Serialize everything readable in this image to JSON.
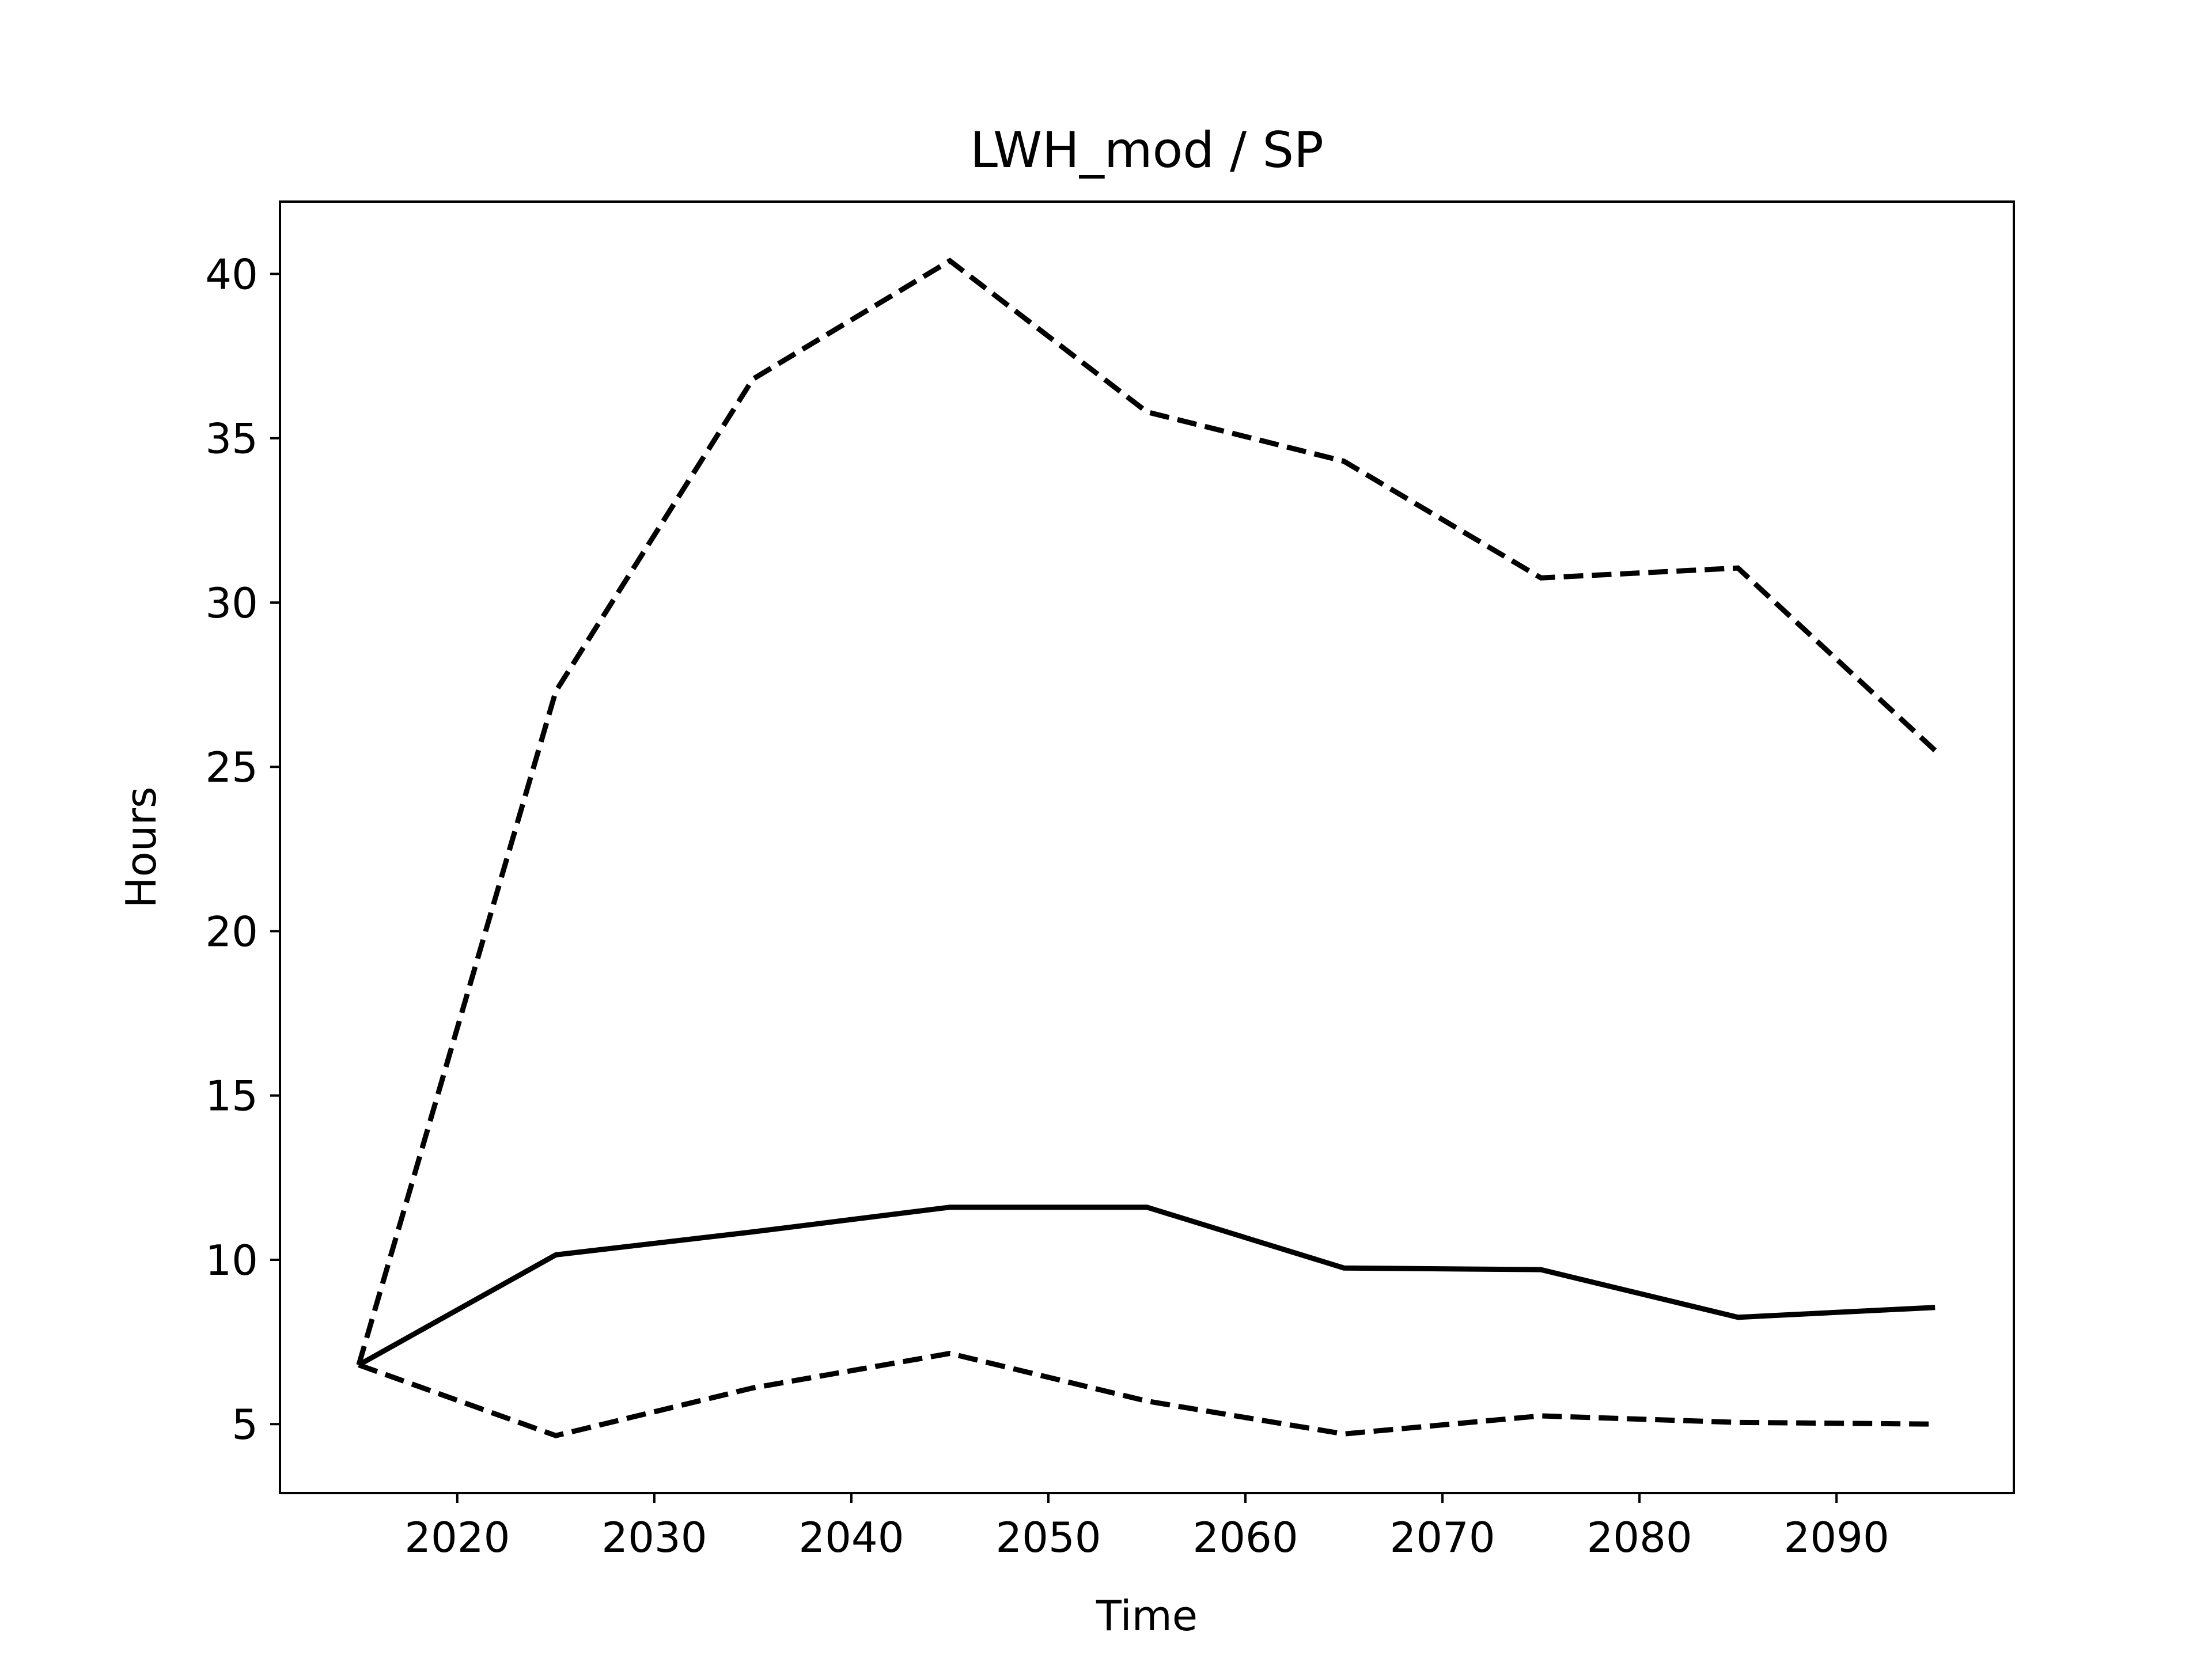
{
  "chart_data": {
    "type": "line",
    "title": "LWH_mod / SP",
    "xlabel": "Time",
    "ylabel": "Hours",
    "xlim": [
      2011,
      2099
    ],
    "ylim": [
      2.9,
      42.2
    ],
    "xticks": [
      2020,
      2030,
      2040,
      2050,
      2060,
      2070,
      2080,
      2090
    ],
    "yticks": [
      5,
      10,
      15,
      20,
      25,
      30,
      35,
      40
    ],
    "grid": false,
    "legend": "none",
    "x": [
      2015,
      2025,
      2035,
      2045,
      2055,
      2065,
      2075,
      2085,
      2095
    ],
    "series": [
      {
        "style": "solid",
        "color": "#000000",
        "values": [
          6.8,
          10.15,
          10.85,
          11.6,
          11.6,
          9.75,
          9.7,
          8.25,
          8.55
        ]
      },
      {
        "style": "dashed",
        "color": "#000000",
        "values": [
          6.8,
          27.3,
          36.8,
          40.4,
          35.8,
          34.3,
          30.75,
          31.05,
          25.5
        ]
      },
      {
        "style": "dashed",
        "color": "#000000",
        "values": [
          6.8,
          4.65,
          6.1,
          7.15,
          5.7,
          4.7,
          5.25,
          5.05,
          5.0
        ]
      }
    ]
  }
}
